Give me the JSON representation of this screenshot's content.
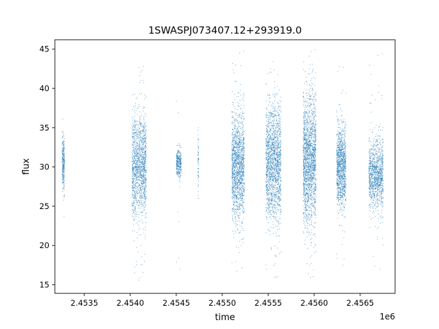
{
  "chart_data": {
    "type": "scatter",
    "title": "1SWASPJ073407.12+293919.0",
    "xlabel": "time",
    "ylabel": "flux",
    "x_offset_label": "1e6",
    "xlim": [
      2453180,
      2456880
    ],
    "ylim": [
      13.9,
      46.2
    ],
    "x_ticks": [
      2453500,
      2454000,
      2454500,
      2455000,
      2455500,
      2456000,
      2456500
    ],
    "x_tick_labels": [
      "2.4535",
      "2.4540",
      "2.4545",
      "2.4550",
      "2.4555",
      "2.4560",
      "2.4565"
    ],
    "y_ticks": [
      15,
      20,
      25,
      30,
      35,
      40,
      45
    ],
    "y_tick_labels": [
      "15",
      "20",
      "25",
      "30",
      "35",
      "40",
      "45"
    ],
    "grid": false,
    "legend": "none",
    "marker_color": "#1f77b4",
    "observing_seasons": [
      {
        "x_start": 2453260,
        "x_end": 2453285,
        "flux_center": 30.5,
        "flux_spread": 1.8,
        "flux_min": 23.5,
        "flux_max": 36.5,
        "count": 260
      },
      {
        "x_start": 2454020,
        "x_end": 2454175,
        "flux_center": 30.0,
        "flux_spread": 3.2,
        "flux_min": 15.5,
        "flux_max": 43.5,
        "count": 1400
      },
      {
        "x_start": 2454500,
        "x_end": 2454555,
        "flux_center": 30.5,
        "flux_spread": 0.9,
        "flux_min": 16.5,
        "flux_max": 44.0,
        "count": 300
      },
      {
        "x_start": 2454735,
        "x_end": 2454745,
        "flux_center": 30.5,
        "flux_spread": 1.7,
        "flux_min": 26.0,
        "flux_max": 35.0,
        "count": 60
      },
      {
        "x_start": 2455105,
        "x_end": 2455240,
        "flux_center": 30.0,
        "flux_spread": 3.3,
        "flux_min": 15.8,
        "flux_max": 44.8,
        "count": 1500
      },
      {
        "x_start": 2455475,
        "x_end": 2455640,
        "flux_center": 30.5,
        "flux_spread": 3.5,
        "flux_min": 15.5,
        "flux_max": 44.3,
        "count": 1700
      },
      {
        "x_start": 2455880,
        "x_end": 2456020,
        "flux_center": 31.0,
        "flux_spread": 4.0,
        "flux_min": 15.5,
        "flux_max": 45.0,
        "count": 1800
      },
      {
        "x_start": 2456245,
        "x_end": 2456345,
        "flux_center": 30.0,
        "flux_spread": 2.4,
        "flux_min": 17.0,
        "flux_max": 44.5,
        "count": 1100
      },
      {
        "x_start": 2456595,
        "x_end": 2456750,
        "flux_center": 29.0,
        "flux_spread": 2.2,
        "flux_min": 16.5,
        "flux_max": 44.5,
        "count": 1100
      }
    ]
  }
}
